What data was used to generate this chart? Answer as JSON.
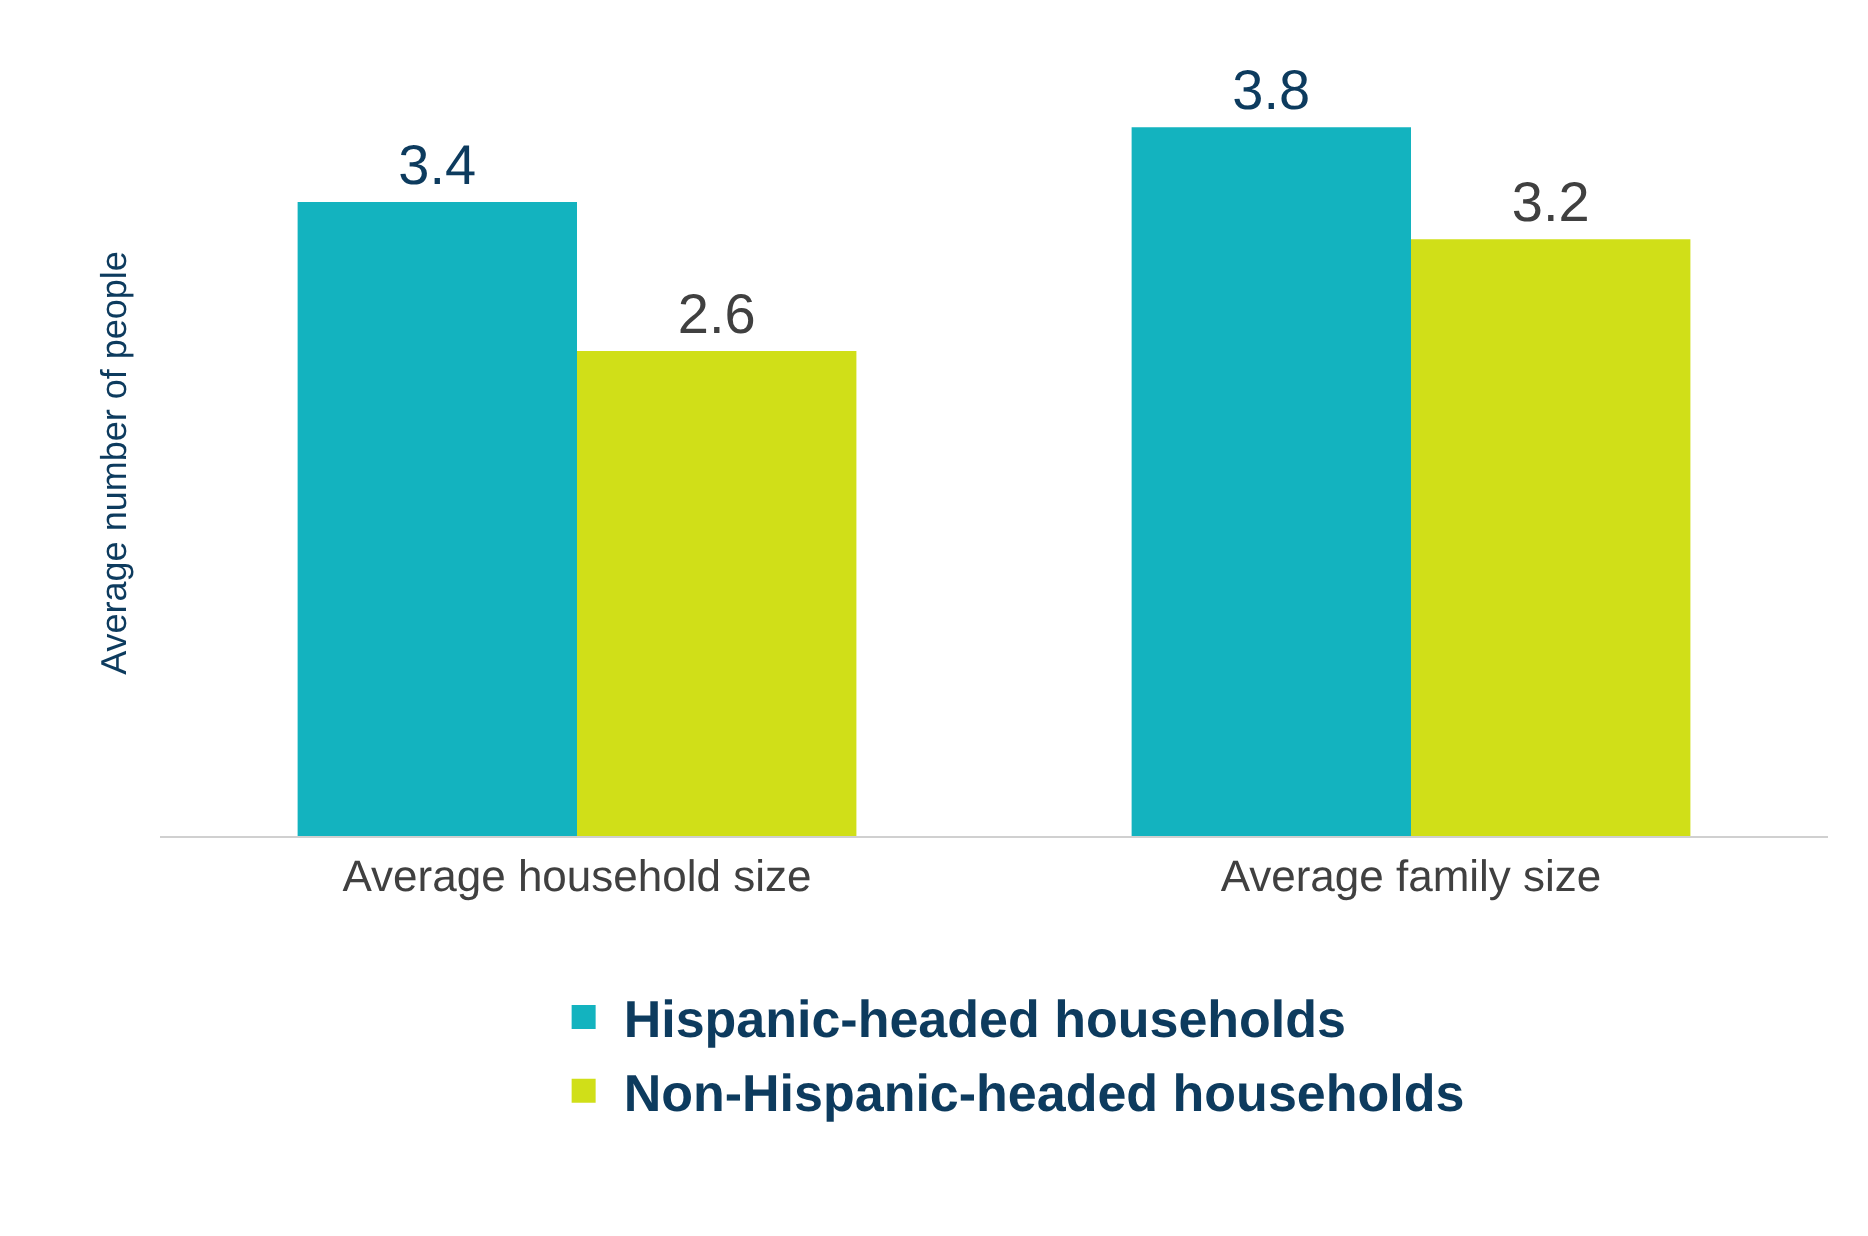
{
  "chart_data": {
    "type": "bar",
    "ylabel": "Average number of people",
    "categories": [
      "Average household size",
      "Average family size"
    ],
    "series": [
      {
        "name": "Hispanic-headed households",
        "color": "#13b3bf",
        "values": [
          3.4,
          3.8
        ]
      },
      {
        "name": "Non-Hispanic-headed households",
        "color": "#d0df18",
        "values": [
          2.6,
          3.2
        ]
      }
    ],
    "data_labels": true,
    "legend": "bottom",
    "grid": false
  }
}
